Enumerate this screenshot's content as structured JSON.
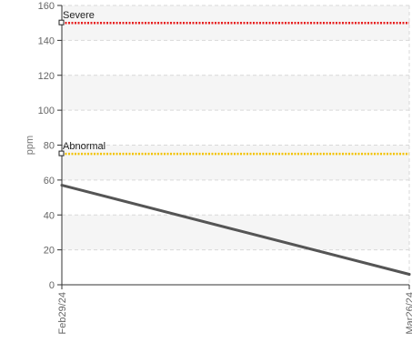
{
  "chart_data": {
    "type": "line",
    "ylabel": "ppm",
    "xlabel": "",
    "ylim": [
      0,
      160
    ],
    "yticks": [
      "0",
      "20",
      "40",
      "60",
      "80",
      "100",
      "120",
      "140",
      "160"
    ],
    "x_tick_labels": [
      "Feb29/24",
      "Mar26/24"
    ],
    "grid": "dashed vertical and horizontal",
    "series": [
      {
        "x": [
          "Feb29/24",
          "Mar26/24"
        ],
        "values": [
          57,
          6
        ]
      }
    ],
    "thresholds": [
      {
        "label": "Severe",
        "value": 150,
        "color": "#e61e1e"
      },
      {
        "label": "Abnormal",
        "value": 75,
        "color": "#f2c200"
      }
    ],
    "line_color": "#555555"
  }
}
